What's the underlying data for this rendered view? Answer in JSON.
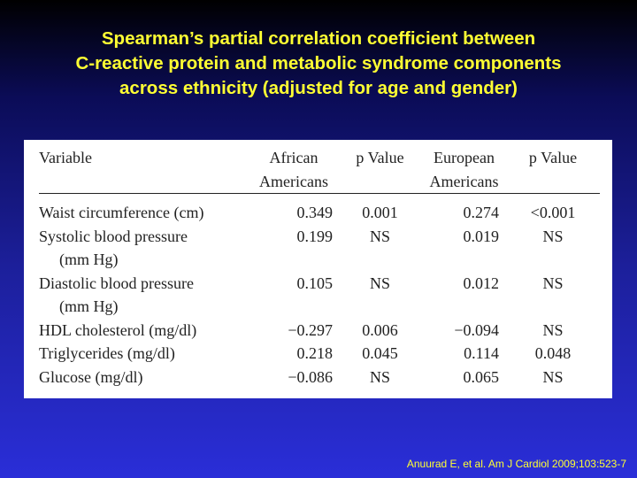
{
  "title": {
    "line1": "Spearman’s partial correlation coefficient between",
    "line2": "C-reactive protein and metabolic syndrome components",
    "line3": "across ethnicity (adjusted for age and gender)"
  },
  "table": {
    "headers": {
      "variable": "Variable",
      "african_1": "African",
      "african_2": "Americans",
      "p1": "p Value",
      "european_1": "European",
      "european_2": "Americans",
      "p2": "p Value"
    },
    "rows": [
      {
        "variable": "Waist circumference (cm)",
        "african": "0.349",
        "p1": "0.001",
        "european": "0.274",
        "p2": "<0.001"
      },
      {
        "variable": "Systolic blood pressure",
        "variable_cont": "(mm Hg)",
        "african": "0.199",
        "p1": "NS",
        "european": "0.019",
        "p2": "NS"
      },
      {
        "variable": "Diastolic blood pressure",
        "variable_cont": "(mm Hg)",
        "african": "0.105",
        "p1": "NS",
        "european": "0.012",
        "p2": "NS"
      },
      {
        "variable": "HDL cholesterol (mg/dl)",
        "african": "−0.297",
        "p1": "0.006",
        "european": "−0.094",
        "p2": "NS"
      },
      {
        "variable": "Triglycerides (mg/dl)",
        "african": "0.218",
        "p1": "0.045",
        "european": "0.114",
        "p2": "0.048"
      },
      {
        "variable": "Glucose (mg/dl)",
        "african": "−0.086",
        "p1": "NS",
        "european": "0.065",
        "p2": "NS"
      }
    ]
  },
  "citation": "Anuurad E, et al. Am J Cardiol 2009;103:523-7"
}
